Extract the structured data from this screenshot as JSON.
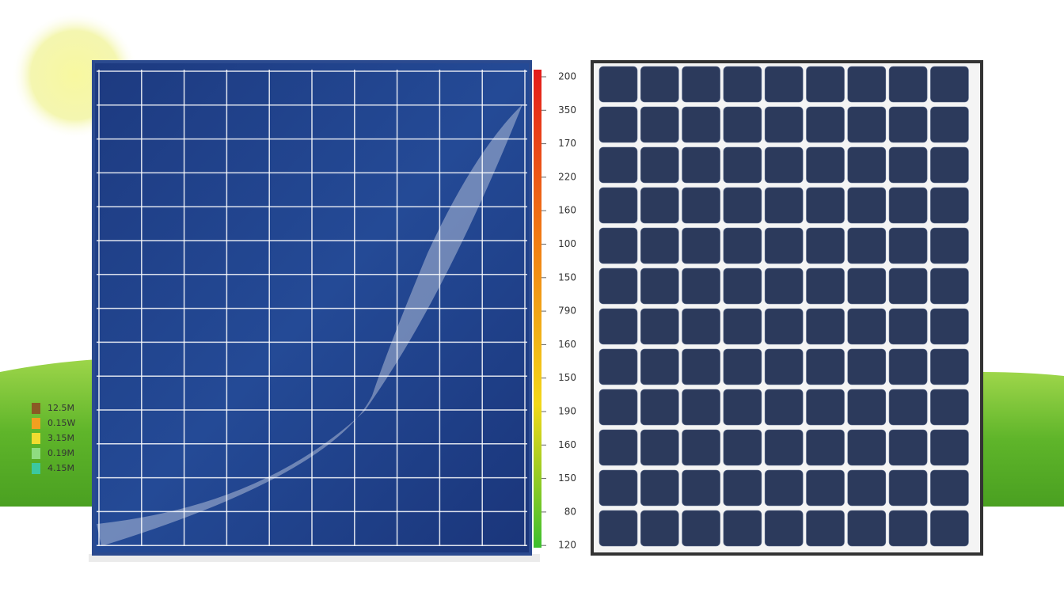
{
  "scale": {
    "labels": [
      "200",
      "350",
      "170",
      "220",
      "160",
      "100",
      "150",
      "790",
      "160",
      "150",
      "190",
      "160",
      "150",
      "80",
      "120"
    ]
  },
  "legend": {
    "items": [
      "12.5M",
      "0.15W",
      "3.15M",
      "0.19M",
      "4.15M"
    ]
  }
}
